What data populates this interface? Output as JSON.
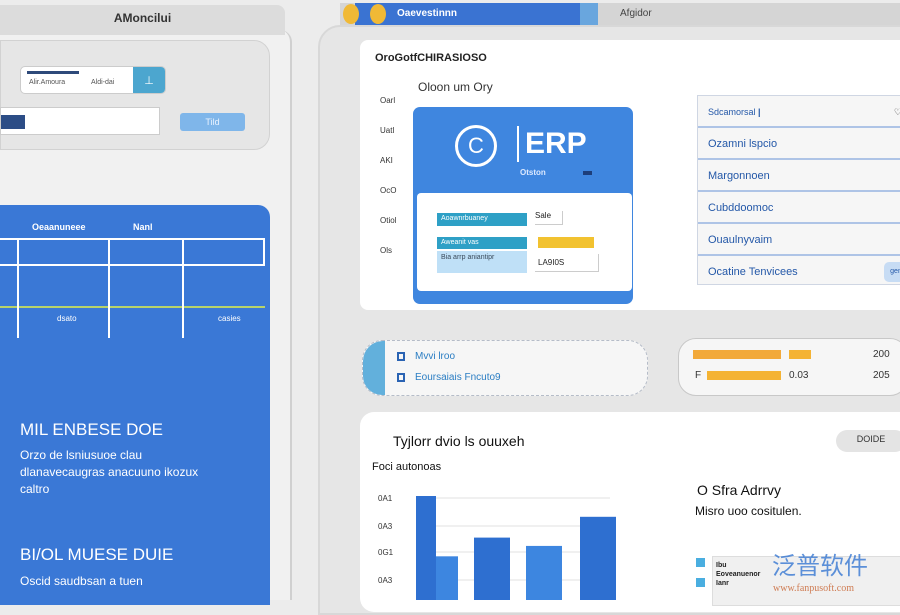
{
  "left_panel": {
    "title": "AMoncilui",
    "mini_search": {
      "label": "Alir.Amoura",
      "value": "Aldi-dai",
      "button_icon": "upload-icon"
    },
    "go_button": "Tild",
    "blue_card": {
      "headers": [
        "Oeaanuneee",
        "Nanl"
      ],
      "cells": [
        "dsato",
        "casies"
      ],
      "section1": {
        "title": "MIL ENBESE DOE",
        "text": "Orzo de lsniusuoe clau dlanavecaugras anacuuno ikozux caltro"
      },
      "section2": {
        "title": "BI/OL MUESE DUIE",
        "text": "Oscid saudbsan a tuen"
      }
    }
  },
  "tabs": [
    {
      "label": "Oaevestinnn",
      "active": true
    },
    {
      "label": "Afgidor",
      "active": false
    }
  ],
  "top_card": {
    "title": "OroGotfCHIRASIOSO",
    "subtitle": "Oloon um Ory",
    "y_labels": [
      "Oarl",
      "Uatl",
      "AKI",
      "OcO",
      "Otiol",
      "Ols"
    ],
    "erp": {
      "logo_letter": "C",
      "name": "ERP",
      "subtitle": "Otston",
      "rows": [
        {
          "pill": "Aoawnrbuaney",
          "value": "Sale"
        },
        {
          "pill": "Aweanit vas",
          "value": ""
        },
        {
          "pill": "Bia arrp aniantipr",
          "value": "LA9I0S"
        }
      ],
      "colors": {
        "teal": "#2ea0c6",
        "yellow": "#f2c230",
        "light_blue": "#bfe0f7"
      }
    },
    "menu": [
      "Sdcamorsal",
      "Ozamni lspcio",
      "Margonnoen",
      "Cubddoomoc",
      "Ouaulnyvaim",
      "Ocatine Tenvicees"
    ],
    "menu_badge": "gen"
  },
  "pills": [
    {
      "icon": "bookmark-icon",
      "label": "Mvvi lroo"
    },
    {
      "icon": "square-icon",
      "label": "Eoursaiais  Fncuto9"
    }
  ],
  "stats": [
    {
      "label": "",
      "fraction": 0.85,
      "value": "",
      "total": "200"
    },
    {
      "label": "F",
      "fraction": 0.85,
      "value": "0.03",
      "total": "205"
    }
  ],
  "chart_card": {
    "title": "Tyjlorr dvio ls ouuxeh",
    "subtitle": "Foci autonoas",
    "button": "DOIDE",
    "legend_title": "O Sfra  Adrrvy",
    "legend_sub": "Misro uoo cositulen.",
    "subtable_label": "Ibu Eoveanuenor Ianr"
  },
  "chart_data": {
    "type": "bar",
    "y_tick_labels": [
      "0A1",
      "0A3",
      "0G1",
      "0A3"
    ],
    "values": [
      100,
      42,
      60,
      52,
      80
    ],
    "colors": [
      "#2e6fd0",
      "#3d86e0"
    ]
  },
  "watermark": {
    "brand": "泛普软件",
    "url": "www.fanpusoft.com"
  }
}
